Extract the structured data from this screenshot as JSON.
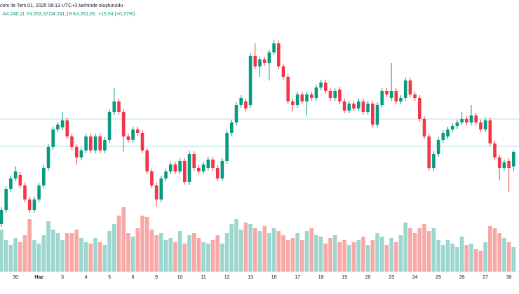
{
  "header": {
    "caption": "com ile Tem 01, 2025 08:13 UTC+3 tarihinde oluşturuldu",
    "last_labels": {
      "open": "A4.246,11",
      "high": "Y4.263,37",
      "low": "D4.241,19",
      "close": "K4.261,65",
      "change": "+15,54 (+0,37%)"
    }
  },
  "chart_data": {
    "type": "candlestick",
    "categories": [
      null,
      null,
      null,
      "30",
      null,
      null,
      null,
      null,
      "Haz",
      null,
      null,
      null,
      null,
      "3",
      null,
      null,
      null,
      null,
      "4",
      null,
      null,
      null,
      null,
      "5",
      null,
      null,
      null,
      null,
      "6",
      null,
      null,
      null,
      null,
      "9",
      null,
      null,
      null,
      null,
      "10",
      null,
      null,
      null,
      null,
      "11",
      null,
      null,
      null,
      null,
      "12",
      null,
      null,
      null,
      null,
      "13",
      null,
      null,
      null,
      null,
      "16",
      null,
      null,
      null,
      null,
      "17",
      null,
      null,
      null,
      null,
      "18",
      null,
      null,
      null,
      null,
      "19",
      null,
      null,
      null,
      null,
      "20",
      null,
      null,
      null,
      null,
      "23",
      null,
      null,
      null,
      null,
      "24",
      null,
      null,
      null,
      null,
      "25",
      null,
      null,
      null,
      null,
      "26",
      null,
      null,
      null,
      null,
      "27",
      null,
      null,
      null,
      null,
      "30",
      null
    ],
    "bold_categories": [
      "Haz"
    ],
    "open": [
      4184.4,
      4199.4,
      4221.9,
      4233.2,
      4236.9,
      4225.7,
      4210.7,
      4199.4,
      4210.7,
      4225.7,
      4244.4,
      4266.9,
      4285.7,
      4287.9,
      4295.4,
      4278.2,
      4266.9,
      4255.7,
      4263.2,
      4278.2,
      4263.2,
      4278.2,
      4263.2,
      4274.4,
      4304.4,
      4315.7,
      4304.4,
      4278.2,
      4274.4,
      4285.7,
      4281.9,
      4263.2,
      4240.7,
      4225.7,
      4210.7,
      4233.2,
      4240.7,
      4248.2,
      4240.7,
      4251.9,
      4229.4,
      4259.4,
      4244.4,
      4240.7,
      4244.4,
      4253.4,
      4244.4,
      4233.2,
      4251.9,
      4281.9,
      4293.2,
      4311.9,
      4315.7,
      4311.9,
      4364.4,
      4353.2,
      4360.7,
      4356.9,
      4368.2,
      4377.9,
      4353.2,
      4341.9,
      4315.7,
      4311.9,
      4323.2,
      4315.7,
      4323.2,
      4319.4,
      4330.7,
      4335.9,
      4326.9,
      4319.4,
      4328.4,
      4315.7,
      4305.9,
      4313.4,
      4308.2,
      4315.7,
      4304.4,
      4313.4,
      4290.9,
      4311.9,
      4326.9,
      4319.4,
      4326.9,
      4315.7,
      4319.4,
      4338.2,
      4323.2,
      4319.4,
      4296.9,
      4278.2,
      4244.4,
      4259.4,
      4274.4,
      4278.2,
      4285.7,
      4289.4,
      4293.2,
      4296.9,
      4293.2,
      4300.7,
      4293.2,
      4285.7,
      4295.4,
      4270.7,
      4255.7,
      4244.4,
      4251.9,
      4246.11
    ],
    "high": [
      4202.4,
      4224.9,
      4236.2,
      4246,
      4239.9,
      4228.7,
      4213.7,
      4213.7,
      4228.7,
      4247.4,
      4269.9,
      4288.7,
      4293.9,
      4304.4,
      4298.4,
      4281.2,
      4269.9,
      4266.2,
      4281.2,
      4281.2,
      4281.2,
      4281.2,
      4277.4,
      4307.4,
      4330,
      4318.7,
      4307.4,
      4281.2,
      4288.7,
      4288.7,
      4284.9,
      4266.2,
      4243.7,
      4228.7,
      4236.2,
      4243.7,
      4251.2,
      4251.2,
      4254.9,
      4254.9,
      4262.4,
      4262.4,
      4247.4,
      4251.2,
      4256.4,
      4256.4,
      4247.4,
      4254.9,
      4284.9,
      4296.2,
      4314.9,
      4322.4,
      4318.7,
      4367.4,
      4378,
      4363.7,
      4363.7,
      4371.2,
      4382,
      4380.9,
      4356.2,
      4344.9,
      4318.7,
      4326.2,
      4326.2,
      4326.2,
      4326.2,
      4333.7,
      4338.9,
      4338.9,
      4329.9,
      4329.9,
      4331.4,
      4318.7,
      4316.4,
      4316.4,
      4318.7,
      4318.7,
      4316.4,
      4316.4,
      4314.9,
      4329.9,
      4329.9,
      4356.9,
      4329.9,
      4322.4,
      4341.2,
      4341.2,
      4326.2,
      4322.4,
      4299.9,
      4281.2,
      4262.4,
      4277.4,
      4284.9,
      4288.7,
      4292.4,
      4296.2,
      4304.4,
      4299.9,
      4311.9,
      4303.7,
      4296.2,
      4298.4,
      4298.4,
      4273.7,
      4258.7,
      4253.4,
      4254.9,
      4263.37
    ],
    "low": [
      4181.4,
      4196.4,
      4218.9,
      4230.2,
      4222.7,
      4207.7,
      4196.4,
      4196.4,
      4207.7,
      4222.7,
      4241.4,
      4263.9,
      4282.7,
      4284.9,
      4275.2,
      4263.9,
      4248,
      4252.7,
      4260.2,
      4260.2,
      4260.2,
      4260.2,
      4260.2,
      4271.4,
      4301.4,
      4301.4,
      4262,
      4271.4,
      4271.4,
      4278.9,
      4260.2,
      4237.7,
      4222.7,
      4203,
      4207.7,
      4230.2,
      4237.7,
      4237.7,
      4237.7,
      4226.4,
      4226.4,
      4241.4,
      4237.7,
      4237.7,
      4241.4,
      4241.4,
      4230.2,
      4230.2,
      4248.9,
      4278.9,
      4290.2,
      4308.9,
      4305.2,
      4308.9,
      4350.2,
      4341.9,
      4353.9,
      4338,
      4365.2,
      4350.2,
      4338.9,
      4312.7,
      4305,
      4308.9,
      4312.7,
      4300.7,
      4316.4,
      4316.4,
      4327.7,
      4323.9,
      4316.4,
      4316.4,
      4312.7,
      4302.9,
      4302.9,
      4305.2,
      4305.2,
      4301.4,
      4301.4,
      4287.9,
      4287.9,
      4308.9,
      4320.2,
      4316.4,
      4312.7,
      4312.7,
      4316.4,
      4320.2,
      4316.4,
      4293.9,
      4275.2,
      4241.4,
      4241.4,
      4256.4,
      4271.4,
      4275.2,
      4282.7,
      4286.4,
      4290.2,
      4290.2,
      4290.2,
      4290.2,
      4282.7,
      4282.7,
      4267.7,
      4252.7,
      4231,
      4241.4,
      4219,
      4241.19
    ],
    "close": [
      4199.4,
      4221.9,
      4233.2,
      4240.7,
      4225.7,
      4210.7,
      4199.4,
      4210.7,
      4225.7,
      4244.4,
      4266.9,
      4285.7,
      4290.9,
      4295.4,
      4278.2,
      4266.9,
      4255.7,
      4263.2,
      4278.2,
      4263.2,
      4278.2,
      4263.2,
      4274.4,
      4304.4,
      4315.7,
      4304.4,
      4278.2,
      4274.4,
      4285.7,
      4281.9,
      4263.2,
      4240.7,
      4225.7,
      4210.7,
      4233.2,
      4240.7,
      4248.2,
      4240.7,
      4251.9,
      4229.4,
      4259.4,
      4244.4,
      4240.7,
      4248.2,
      4253.4,
      4244.4,
      4233.2,
      4251.9,
      4281.9,
      4293.2,
      4311.9,
      4319.4,
      4308.2,
      4364.4,
      4353.2,
      4360.7,
      4356.9,
      4368.2,
      4377.9,
      4353.2,
      4341.9,
      4315.7,
      4311.9,
      4323.2,
      4315.7,
      4323.2,
      4319.4,
      4330.7,
      4335.9,
      4326.9,
      4319.4,
      4326.9,
      4315.7,
      4305.9,
      4313.4,
      4308.2,
      4315.7,
      4304.4,
      4313.4,
      4290.9,
      4311.9,
      4326.9,
      4323.2,
      4326.9,
      4315.7,
      4319.4,
      4338.2,
      4323.2,
      4319.4,
      4296.9,
      4278.2,
      4244.4,
      4259.4,
      4274.4,
      4281.9,
      4285.7,
      4289.4,
      4293.2,
      4296.9,
      4293.2,
      4300.7,
      4293.2,
      4285.7,
      4295.4,
      4270.7,
      4255.7,
      4244.4,
      4250.4,
      4244.4,
      4261.65
    ],
    "volume": [
      60,
      45,
      38,
      48,
      42,
      52,
      75,
      45,
      40,
      52,
      72,
      60,
      55,
      45,
      55,
      55,
      60,
      48,
      42,
      40,
      48,
      42,
      38,
      58,
      68,
      80,
      92,
      55,
      50,
      62,
      80,
      78,
      60,
      52,
      55,
      45,
      48,
      42,
      58,
      40,
      52,
      55,
      48,
      42,
      40,
      45,
      52,
      40,
      55,
      68,
      75,
      60,
      70,
      68,
      62,
      58,
      65,
      55,
      62,
      58,
      52,
      45,
      48,
      55,
      45,
      58,
      62,
      52,
      50,
      40,
      48,
      52,
      42,
      45,
      38,
      42,
      45,
      50,
      38,
      45,
      55,
      50,
      38,
      48,
      42,
      52,
      70,
      62,
      55,
      62,
      68,
      58,
      62,
      45,
      38,
      45,
      40,
      35,
      50,
      38,
      40,
      32,
      30,
      42,
      65,
      62,
      55,
      48,
      42,
      35
    ],
    "ylim": [
      4190,
      4400
    ],
    "volume_lim": [
      0,
      100
    ],
    "levels": [
      4296.9,
      4267.65
    ],
    "colors": {
      "up": "#089981",
      "down": "#f23645",
      "volume_up": "#9dd6cf",
      "volume_down": "#f7a9a7",
      "level": "#b2dfdb"
    }
  }
}
